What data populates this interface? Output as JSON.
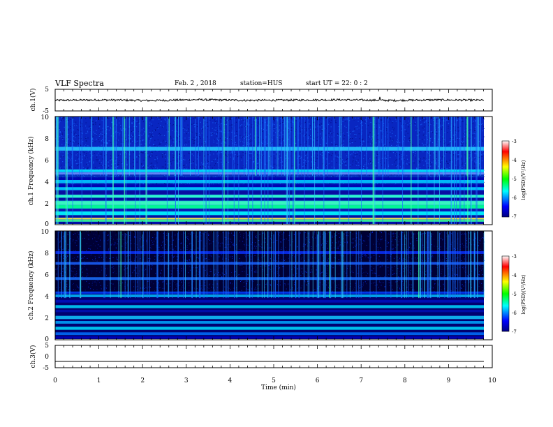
{
  "header": {
    "title": "VLF Spectra",
    "date": "Feb. 2 , 2018",
    "station": "station=HUS",
    "start": "start UT = 22: 0 : 2"
  },
  "chart_data": [
    {
      "type": "line",
      "ylabel": "ch.1(V)",
      "xlim": [
        0,
        10
      ],
      "ylim": [
        -5,
        5
      ],
      "yticks": [
        "5",
        "-5"
      ],
      "series": [
        {
          "values": [
            -0.1,
            0.1,
            -0.2,
            0.2,
            -0.1,
            0.0,
            0.15,
            -0.15,
            0.1,
            -0.05
          ]
        }
      ]
    },
    {
      "type": "heatmap",
      "ylabel": "ch.1 Frequency (kHz)",
      "xlim": [
        0,
        10
      ],
      "ylim": [
        0,
        10
      ],
      "yticks": [
        "0",
        "2",
        "4",
        "6",
        "8",
        "10"
      ],
      "colorbar": {
        "label": "log(PSD)(V²/Hz)",
        "range": [
          -7,
          -3
        ],
        "ticks": [
          "-3",
          "-4",
          "-5",
          "-6",
          "-7"
        ]
      }
    },
    {
      "type": "heatmap",
      "ylabel": "ch.2 Frequency (kHz)",
      "xlim": [
        0,
        10
      ],
      "ylim": [
        0,
        10
      ],
      "yticks": [
        "0",
        "2",
        "4",
        "6",
        "8",
        "10"
      ],
      "colorbar": {
        "label": "log(PSD)(V²/Hz)",
        "range": [
          -7,
          -3
        ],
        "ticks": [
          "-3",
          "-4",
          "-5",
          "-6",
          "-7"
        ]
      }
    },
    {
      "type": "line",
      "ylabel": "ch.3(V)",
      "xlabel": "Time (min)",
      "xlim": [
        0,
        10
      ],
      "ylim": [
        -5,
        5
      ],
      "yticks": [
        "5",
        "0",
        "-5"
      ],
      "xticks": [
        "0",
        "1",
        "2",
        "3",
        "4",
        "5",
        "6",
        "7",
        "8",
        "9",
        "10"
      ],
      "series": [
        {
          "values": [
            -2.2,
            -2.2,
            -2.2,
            -2.2,
            -2.2,
            -2.2,
            -2.2,
            -2.2,
            -2.2,
            -2.2
          ]
        }
      ]
    }
  ]
}
